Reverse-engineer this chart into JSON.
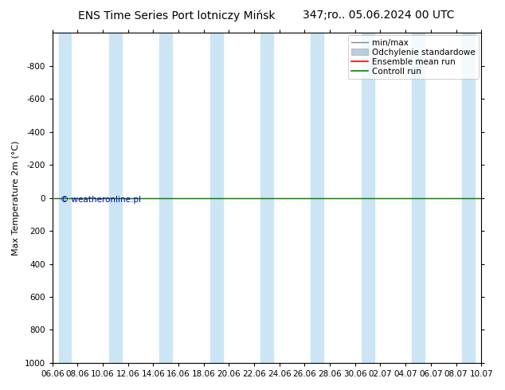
{
  "title_left": "ENS Time Series Port lotniczy Mińsk",
  "title_right": "347;ro.. 05.06.2024 00 UTC",
  "ylabel": "Max Temperature 2m (°C)",
  "ylim_top": -1000,
  "ylim_bottom": 1000,
  "yticks": [
    -800,
    -600,
    -400,
    -200,
    0,
    200,
    400,
    600,
    800,
    1000
  ],
  "xlim_left": 0,
  "xlim_right": 34,
  "xtick_labels": [
    "06.06",
    "08.06",
    "10.06",
    "12.06",
    "14.06",
    "16.06",
    "18.06",
    "20.06",
    "22.06",
    "24.06",
    "26.06",
    "28.06",
    "30.06",
    "02.07",
    "04.07",
    "06.07",
    "08.07",
    "10.07"
  ],
  "xtick_positions": [
    0,
    2,
    4,
    6,
    8,
    10,
    12,
    14,
    16,
    18,
    20,
    22,
    24,
    26,
    28,
    30,
    32,
    34
  ],
  "blue_bands": [
    [
      0.5,
      1.5
    ],
    [
      4.5,
      5.5
    ],
    [
      8.5,
      9.5
    ],
    [
      12.5,
      13.5
    ],
    [
      16.5,
      17.5
    ],
    [
      20.5,
      21.5
    ],
    [
      24.5,
      25.5
    ],
    [
      28.5,
      29.5
    ],
    [
      32.5,
      33.5
    ]
  ],
  "band_color": "#cce5f5",
  "green_line_y": 0,
  "green_line_color": "#008800",
  "red_line_color": "#ff0000",
  "copyright_text": "© weatheronline.pl",
  "copyright_color": "#0000bb",
  "bg_color": "#ffffff",
  "legend_labels": [
    "min/max",
    "Odchylenie standardowe",
    "Ensemble mean run",
    "Controll run"
  ],
  "legend_line_color": "#888888",
  "legend_band_color": "#bbccdd",
  "legend_red_color": "#ff0000",
  "legend_green_color": "#008800",
  "title_fontsize": 10,
  "axis_fontsize": 8,
  "tick_fontsize": 7.5,
  "legend_fontsize": 7.5
}
